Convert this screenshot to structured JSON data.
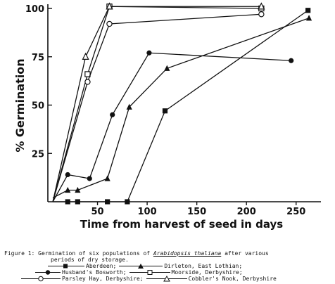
{
  "caption": {
    "prefix": "Figure 1: Germination of six populations of ",
    "species": "Arabidopsis thaliana",
    "suffix": " after various",
    "line2": "periods of dry storage."
  },
  "chart_data": {
    "type": "line",
    "title": "",
    "xlabel": "Time from harvest of seed in days",
    "ylabel": "% Germination",
    "xlim": [
      0,
      275
    ],
    "ylim": [
      0,
      100
    ],
    "x_ticks": [
      50,
      100,
      150,
      200,
      250
    ],
    "y_ticks": [
      25,
      50,
      75,
      100
    ],
    "y_tick_labels": [
      "25",
      "50",
      "75",
      "100"
    ],
    "x_tick_labels": [
      "50",
      "100",
      "150",
      "200",
      "250"
    ],
    "grid": false,
    "legend_position": "bottom",
    "series": [
      {
        "name": "Aberdeen",
        "marker": "filled-square",
        "points": [
          [
            5,
            0
          ],
          [
            20,
            0
          ],
          [
            30,
            0
          ],
          [
            60,
            0
          ],
          [
            80,
            0
          ],
          [
            118,
            47
          ],
          [
            262,
            99
          ]
        ]
      },
      {
        "name": "Dirleton, East Lothian",
        "marker": "filled-triangle",
        "points": [
          [
            5,
            2
          ],
          [
            20,
            6
          ],
          [
            30,
            6
          ],
          [
            60,
            12
          ],
          [
            82,
            49
          ],
          [
            120,
            69
          ],
          [
            263,
            95
          ]
        ]
      },
      {
        "name": "Husband's Bosworth",
        "marker": "filled-circle",
        "points": [
          [
            5,
            0
          ],
          [
            20,
            14
          ],
          [
            42,
            12
          ],
          [
            65,
            45
          ],
          [
            102,
            77
          ],
          [
            245,
            73
          ]
        ]
      },
      {
        "name": "Moorside, Derbyshire",
        "marker": "open-square",
        "points": [
          [
            5,
            0
          ],
          [
            40,
            66
          ],
          [
            62,
            101
          ],
          [
            215,
            100
          ]
        ]
      },
      {
        "name": "Parsley Hay, Derbyshire",
        "marker": "open-circle",
        "points": [
          [
            5,
            0
          ],
          [
            40,
            62
          ],
          [
            62,
            92
          ],
          [
            215,
            97
          ]
        ]
      },
      {
        "name": "Cobbler's Nook, Derbyshire",
        "marker": "open-triangle",
        "points": [
          [
            5,
            0
          ],
          [
            38,
            75
          ],
          [
            62,
            101
          ],
          [
            215,
            101
          ]
        ]
      }
    ]
  },
  "legend": {
    "row1": [
      "Aberdeen;",
      "Dirleton, East Lothian;"
    ],
    "row2": [
      "Husband's Bosworth;",
      "Moorside, Derbyshire;"
    ],
    "row3": [
      "Parsley Hay, Derbyshire;",
      "Cobbler's Nook, Derbyshire"
    ]
  }
}
